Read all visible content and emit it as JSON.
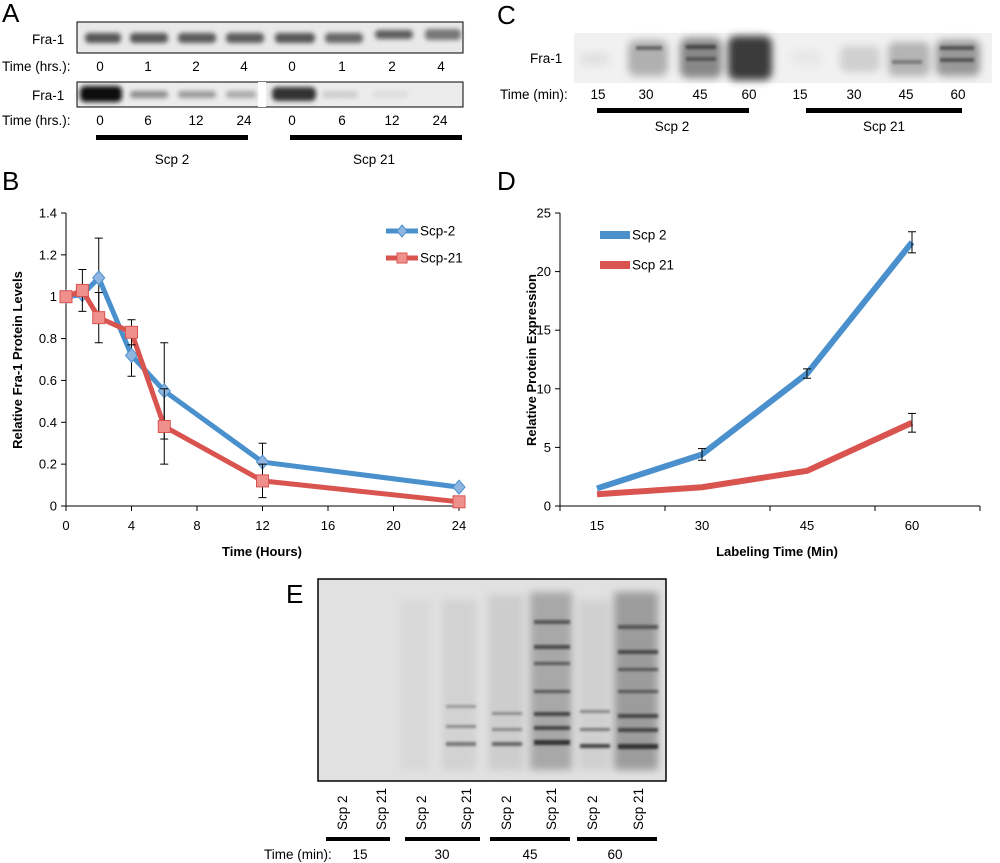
{
  "panel_a": {
    "letter": "A",
    "blot_label": "Fra-1",
    "time_label": "Time (hrs.):",
    "row1_times": [
      "0",
      "1",
      "2",
      "4",
      "0",
      "1",
      "2",
      "4"
    ],
    "row2_times": [
      "0",
      "6",
      "12",
      "24",
      "0",
      "6",
      "12",
      "24"
    ],
    "group1": "Scp 2",
    "group2": "Scp 21"
  },
  "panel_c": {
    "letter": "C",
    "blot_label": "Fra-1",
    "time_label": "Time (min):",
    "times": [
      "15",
      "30",
      "45",
      "60",
      "15",
      "30",
      "45",
      "60"
    ],
    "group1": "Scp 2",
    "group2": "Scp 21"
  },
  "panel_e": {
    "letter": "E",
    "lane_labels": [
      "Scp 2",
      "Scp 21",
      "Scp 2",
      "Scp 21",
      "Scp 2",
      "Scp 21",
      "Scp 2",
      "Scp 21"
    ],
    "time_label": "Time (min):",
    "times": [
      "15",
      "30",
      "45",
      "60"
    ]
  },
  "chart_data": [
    {
      "panel": "B",
      "type": "line",
      "title": "",
      "xlabel": "Time (Hours)",
      "ylabel": "Relative Fra-1 Protein Levels",
      "xlim": [
        0,
        24
      ],
      "ylim": [
        0,
        1.4
      ],
      "xticks": [
        "0",
        "4",
        "8",
        "12",
        "16",
        "20",
        "24"
      ],
      "yticks": [
        "0",
        "0.2",
        "0.4",
        "0.6",
        "0.8",
        "1",
        "1.2",
        "1.4"
      ],
      "legend_position": "top-right",
      "colors": {
        "Scp-2": "#4a90cd",
        "Scp-21": "#d9534f"
      },
      "series": [
        {
          "name": "Scp-2",
          "marker": "diamond",
          "x": [
            0,
            1,
            2,
            4,
            6,
            12,
            24
          ],
          "y": [
            1.0,
            1.01,
            1.09,
            0.72,
            0.55,
            0.21,
            0.09
          ],
          "err": [
            0.0,
            0.0,
            0.19,
            0.1,
            0.23,
            0.09,
            0.0
          ]
        },
        {
          "name": "Scp-21",
          "marker": "square",
          "x": [
            0,
            1,
            2,
            4,
            6,
            12,
            24
          ],
          "y": [
            1.0,
            1.03,
            0.9,
            0.83,
            0.38,
            0.12,
            0.02
          ],
          "err": [
            0.0,
            0.1,
            0.12,
            0.06,
            0.18,
            0.08,
            0.0
          ]
        }
      ]
    },
    {
      "panel": "D",
      "type": "line",
      "title": "",
      "xlabel": "Labeling Time (Min)",
      "ylabel": "Relative Protein Expression",
      "categories": [
        "15",
        "30",
        "45",
        "60"
      ],
      "ylim": [
        0,
        25
      ],
      "yticks": [
        "0",
        "5",
        "10",
        "15",
        "20",
        "25"
      ],
      "legend_position": "top-left",
      "colors": {
        "Scp 2": "#4a90cd",
        "Scp 21": "#d9534f"
      },
      "series": [
        {
          "name": "Scp 2",
          "values": [
            1.5,
            4.4,
            11.3,
            22.5
          ],
          "err": [
            0,
            0.5,
            0.4,
            0.9
          ]
        },
        {
          "name": "Scp 21",
          "values": [
            1.0,
            1.6,
            3.0,
            7.1
          ],
          "err": [
            0,
            0,
            0,
            0.8
          ]
        }
      ]
    }
  ]
}
